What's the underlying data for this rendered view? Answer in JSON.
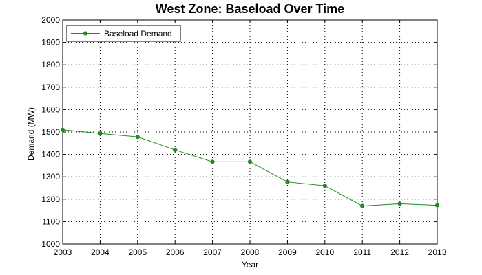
{
  "chart_data": {
    "type": "line",
    "title": "West Zone: Baseload Over Time",
    "xlabel": "Year",
    "ylabel": "Demand (MW)",
    "x": [
      2003,
      2004,
      2005,
      2006,
      2007,
      2008,
      2009,
      2010,
      2011,
      2012,
      2013
    ],
    "series": [
      {
        "name": "Baseload Demand",
        "color": "#228b22",
        "marker": "circle",
        "values": [
          1510,
          1493,
          1478,
          1420,
          1367,
          1367,
          1277,
          1260,
          1170,
          1180,
          1173
        ]
      }
    ],
    "xlim": [
      2003,
      2013
    ],
    "ylim": [
      1000,
      2000
    ],
    "xticks": [
      "2003",
      "2004",
      "2005",
      "2006",
      "2007",
      "2008",
      "2009",
      "2010",
      "2011",
      "2012",
      "2013"
    ],
    "yticks": [
      "1000",
      "1100",
      "1200",
      "1300",
      "1400",
      "1500",
      "1600",
      "1700",
      "1800",
      "1900",
      "2000"
    ],
    "grid": true,
    "legend_position": "top-left"
  }
}
